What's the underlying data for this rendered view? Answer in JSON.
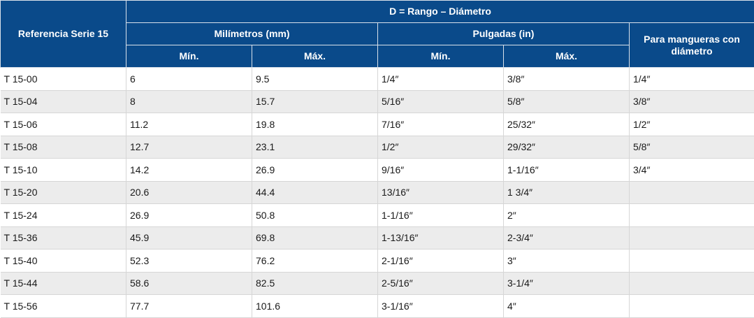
{
  "header": {
    "reference": "Referencia Serie 15",
    "range": "D = Rango – Diámetro",
    "millimeters": "Milímetros (mm)",
    "inches": "Pulgadas (in)",
    "hose": "Para mangueras con diámetro",
    "mm_min": "Mín.",
    "mm_max": "Máx.",
    "in_min": "Mín.",
    "in_max": "Máx."
  },
  "rows": [
    {
      "ref": "T 15-00",
      "mm_min": "6",
      "mm_max": "9.5",
      "in_min": "1/4″",
      "in_max": "3/8″",
      "hose": "1/4″"
    },
    {
      "ref": "T 15-04",
      "mm_min": "8",
      "mm_max": "15.7",
      "in_min": "5/16″",
      "in_max": "5/8″",
      "hose": "3/8″"
    },
    {
      "ref": "T 15-06",
      "mm_min": "11.2",
      "mm_max": "19.8",
      "in_min": "7/16″",
      "in_max": "25/32″",
      "hose": "1/2″"
    },
    {
      "ref": "T 15-08",
      "mm_min": "12.7",
      "mm_max": "23.1",
      "in_min": "1/2″",
      "in_max": "29/32″",
      "hose": "5/8″"
    },
    {
      "ref": "T 15-10",
      "mm_min": "14.2",
      "mm_max": "26.9",
      "in_min": "9/16″",
      "in_max": "1-1/16″",
      "hose": "3/4″"
    },
    {
      "ref": "T 15-20",
      "mm_min": "20.6",
      "mm_max": "44.4",
      "in_min": "13/16″",
      "in_max": "1 3/4″",
      "hose": ""
    },
    {
      "ref": "T 15-24",
      "mm_min": "26.9",
      "mm_max": "50.8",
      "in_min": "1-1/16″",
      "in_max": "2″",
      "hose": ""
    },
    {
      "ref": "T 15-36",
      "mm_min": "45.9",
      "mm_max": "69.8",
      "in_min": "1-13/16″",
      "in_max": "2-3/4″",
      "hose": ""
    },
    {
      "ref": "T 15-40",
      "mm_min": "52.3",
      "mm_max": "76.2",
      "in_min": "2-1/16″",
      "in_max": "3″",
      "hose": ""
    },
    {
      "ref": "T 15-44",
      "mm_min": "58.6",
      "mm_max": "82.5",
      "in_min": "2-5/16″",
      "in_max": "3-1/4″",
      "hose": ""
    },
    {
      "ref": "T 15-56",
      "mm_min": "77.7",
      "mm_max": "101.6",
      "in_min": "3-1/16″",
      "in_max": "4″",
      "hose": ""
    }
  ]
}
